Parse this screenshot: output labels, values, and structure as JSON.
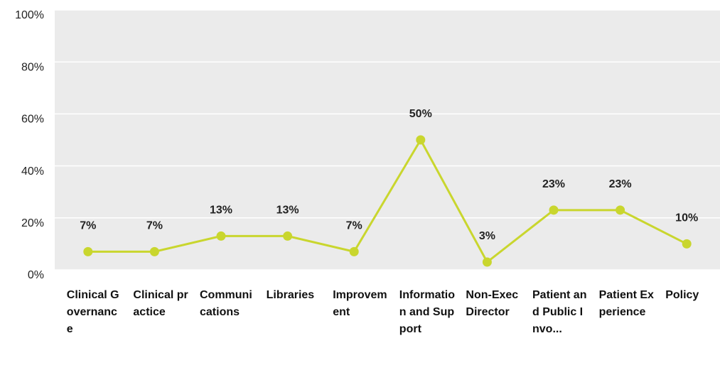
{
  "chart_data": {
    "type": "line",
    "categories": [
      "Clinical Governance",
      "Clinical practice",
      "Communications",
      "Libraries",
      "Improvement",
      "Information and Support",
      "Non-Exec Director",
      "Patient and Public Invo...",
      "Patient Experience",
      "Policy"
    ],
    "series": [
      {
        "color": "#c9d62e",
        "values": [
          7,
          7,
          13,
          13,
          7,
          50,
          3,
          23,
          23,
          10
        ],
        "value_labels": [
          "7%",
          "7%",
          "13%",
          "13%",
          "7%",
          "50%",
          "3%",
          "23%",
          "23%",
          "10%"
        ]
      }
    ],
    "ylim": [
      0,
      100
    ],
    "yticks": [
      {
        "value": 0,
        "label": "0%"
      },
      {
        "value": 20,
        "label": "20%"
      },
      {
        "value": 40,
        "label": "40%"
      },
      {
        "value": 60,
        "label": "60%"
      },
      {
        "value": 80,
        "label": "80%"
      },
      {
        "value": 100,
        "label": "100%"
      }
    ],
    "grid": true
  }
}
